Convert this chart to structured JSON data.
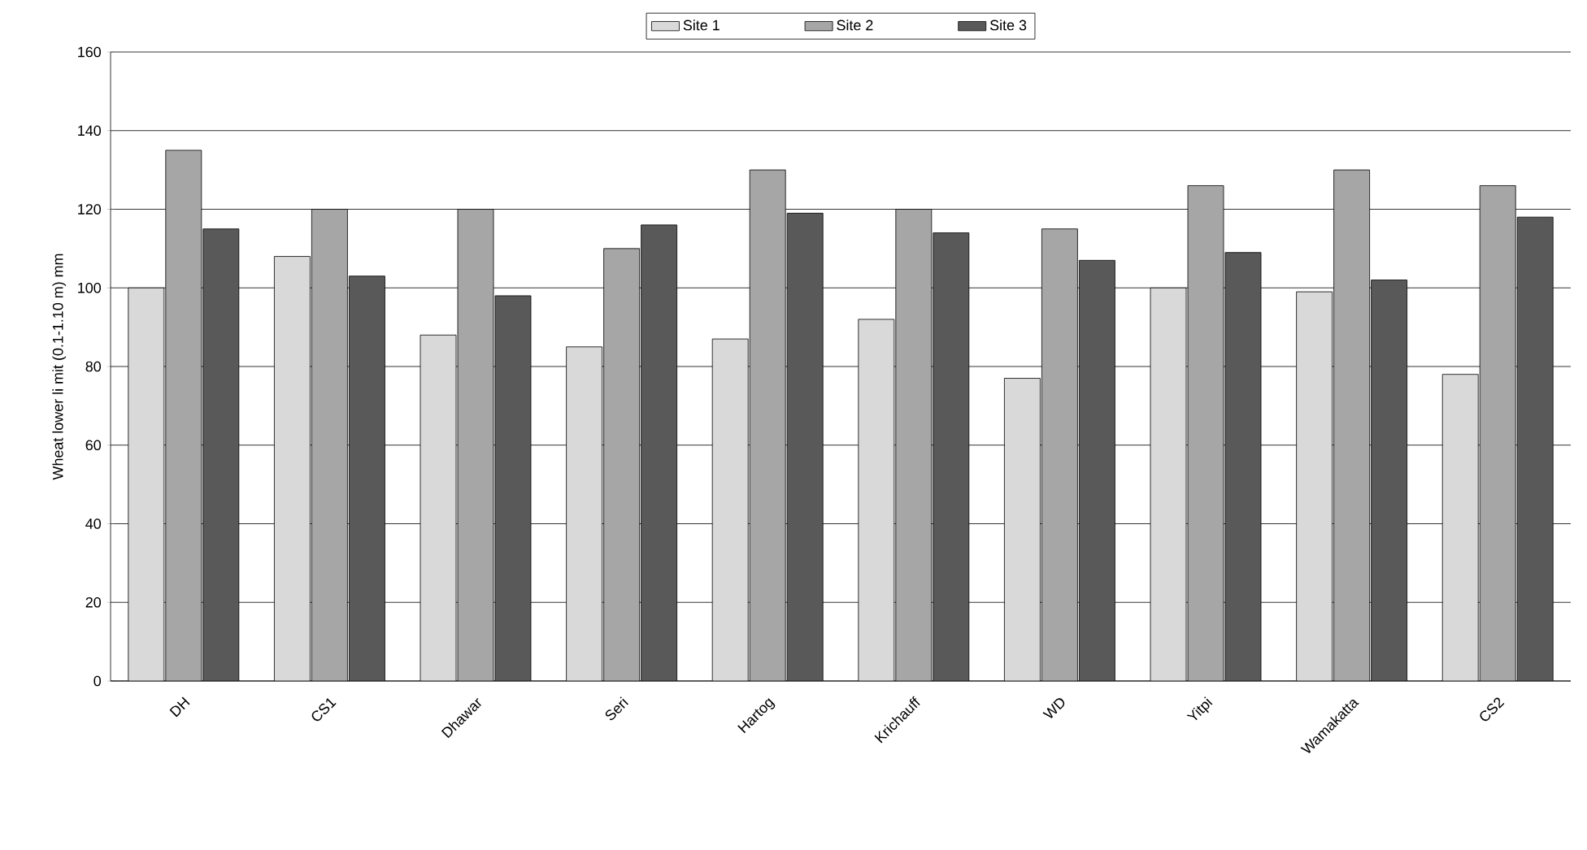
{
  "chart_data": {
    "type": "bar",
    "ylabel": "Wheat lower li mit (0.1-1.10 m) mm",
    "categories": [
      "DH",
      "CS1",
      "Dhawar",
      "Seri",
      "Hartog",
      "Krichauff",
      "WD",
      "Yitpi",
      "Wamakatta",
      "CS2"
    ],
    "series": [
      {
        "name": "Site 1",
        "color": "#d9d9d9",
        "values": [
          100,
          108,
          88,
          85,
          87,
          92,
          77,
          100,
          99,
          78
        ]
      },
      {
        "name": "Site 2",
        "color": "#a6a6a6",
        "values": [
          135,
          120,
          120,
          110,
          130,
          120,
          115,
          126,
          130,
          126
        ]
      },
      {
        "name": "Site 3",
        "color": "#595959",
        "values": [
          115,
          103,
          98,
          116,
          119,
          114,
          107,
          109,
          102,
          118
        ]
      }
    ],
    "ylim": [
      0,
      160
    ],
    "yticks": [
      0,
      20,
      40,
      60,
      80,
      100,
      120,
      140,
      160
    ],
    "grid": "y",
    "legend": "top"
  }
}
